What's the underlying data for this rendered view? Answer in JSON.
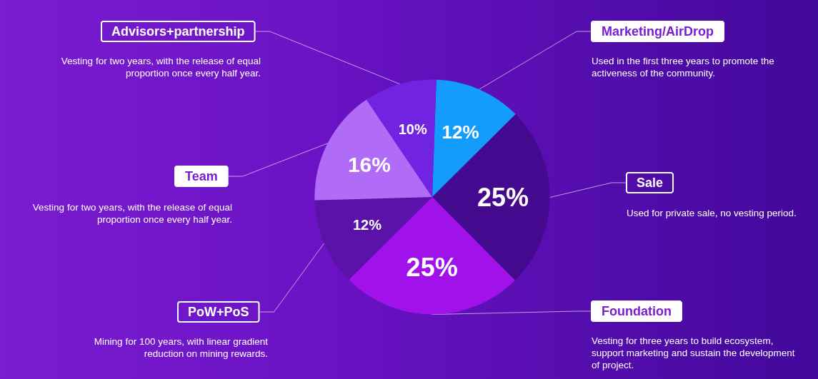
{
  "chart_data": {
    "type": "pie",
    "categories": [
      "Marketing/AirDrop",
      "Sale",
      "Foundation",
      "PoW+PoS",
      "Team",
      "Advisors+partnership"
    ],
    "values": [
      12,
      25,
      25,
      12,
      16,
      10
    ],
    "value_labels": [
      "12%",
      "25%",
      "25%",
      "12%",
      "16%",
      "10%"
    ],
    "colors": [
      "#139cfb",
      "#44098f",
      "#a012e9",
      "#5b12a8",
      "#b06cf7",
      "#7024e2"
    ],
    "annotations": [
      "Used in the first three years to promote the activeness of the community.",
      "Used for private sale, no vesting period.",
      "Vesting for three years to build ecosystem, support marketing and sustain the development of project.",
      "Mining for 100 years, with linear gradient reduction on mining rewards.",
      "Vesting for two years, with the release of equal proportion once every half year.",
      "Vesting for two years, with the release of equal proportion once every half year."
    ],
    "legend": false
  }
}
